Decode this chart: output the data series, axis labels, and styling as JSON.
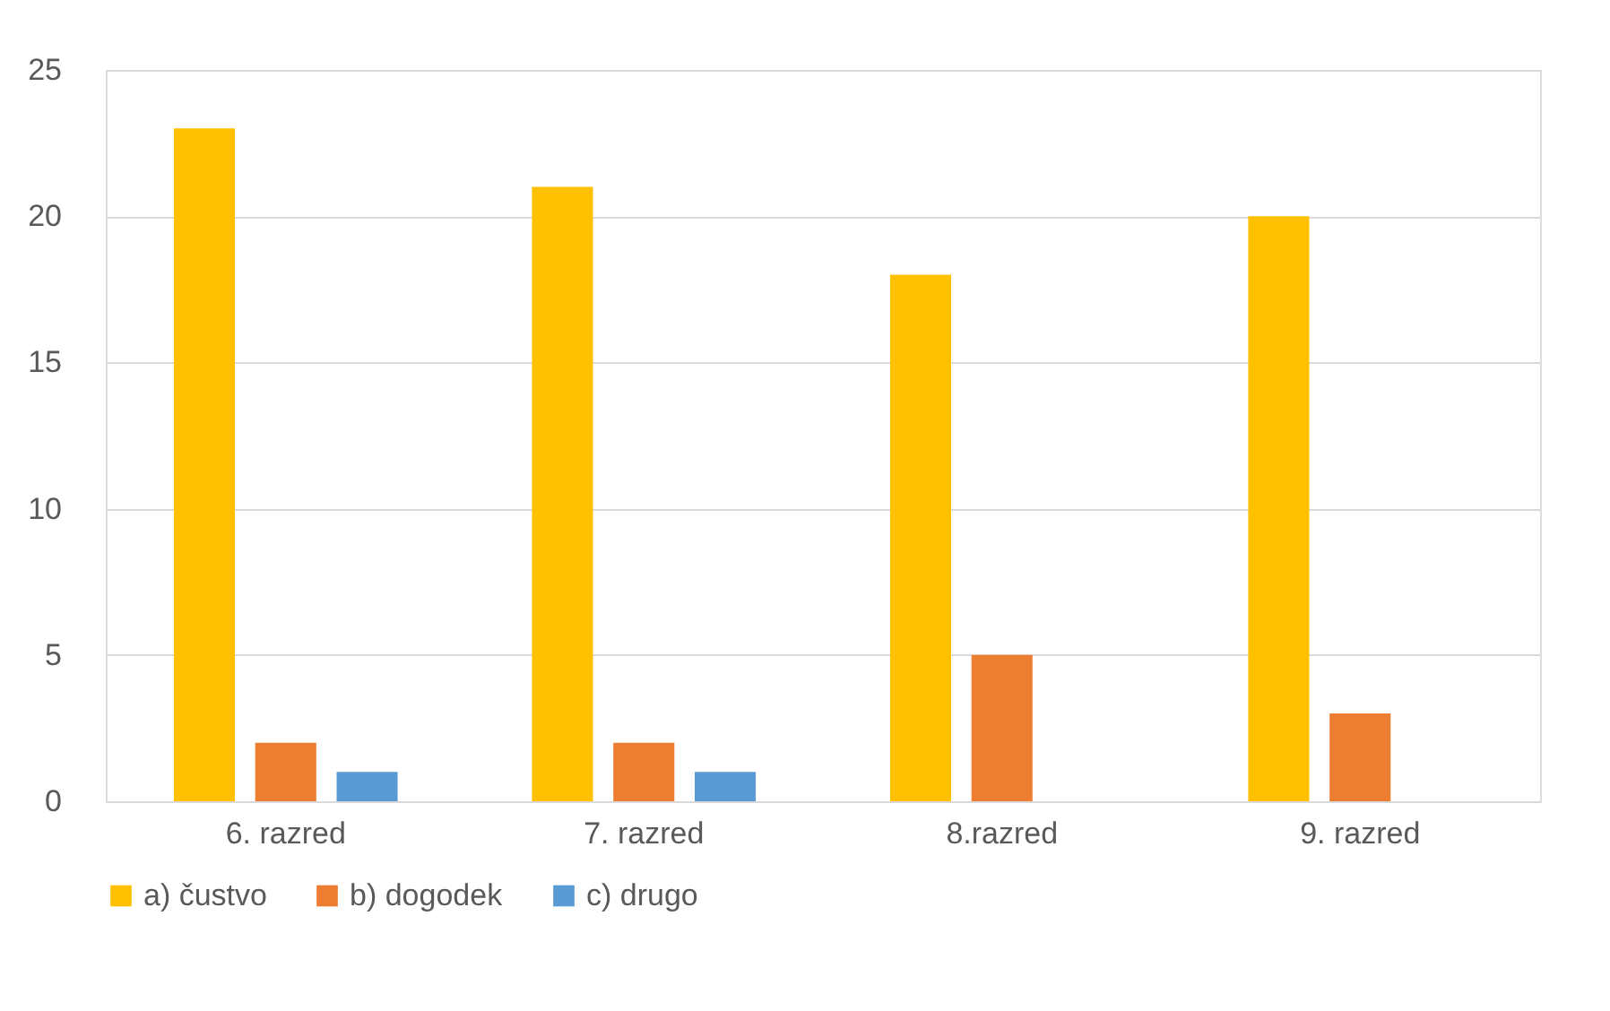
{
  "chart_data": {
    "type": "bar",
    "categories": [
      "6. razred",
      "7. razred",
      "8.razred",
      "9. razred"
    ],
    "series": [
      {
        "name": "a) čustvo",
        "color": "#ffc000",
        "values": [
          23,
          21,
          18,
          20
        ]
      },
      {
        "name": "b) dogodek",
        "color": "#ed7d31",
        "values": [
          2,
          2,
          5,
          3
        ]
      },
      {
        "name": "c) drugo",
        "color": "#5b9bd5",
        "values": [
          1,
          1,
          null,
          null
        ]
      }
    ],
    "ylim": [
      0,
      25
    ],
    "yticks": [
      0,
      5,
      10,
      15,
      20,
      25
    ],
    "grid": "y",
    "legend": "bottom"
  }
}
